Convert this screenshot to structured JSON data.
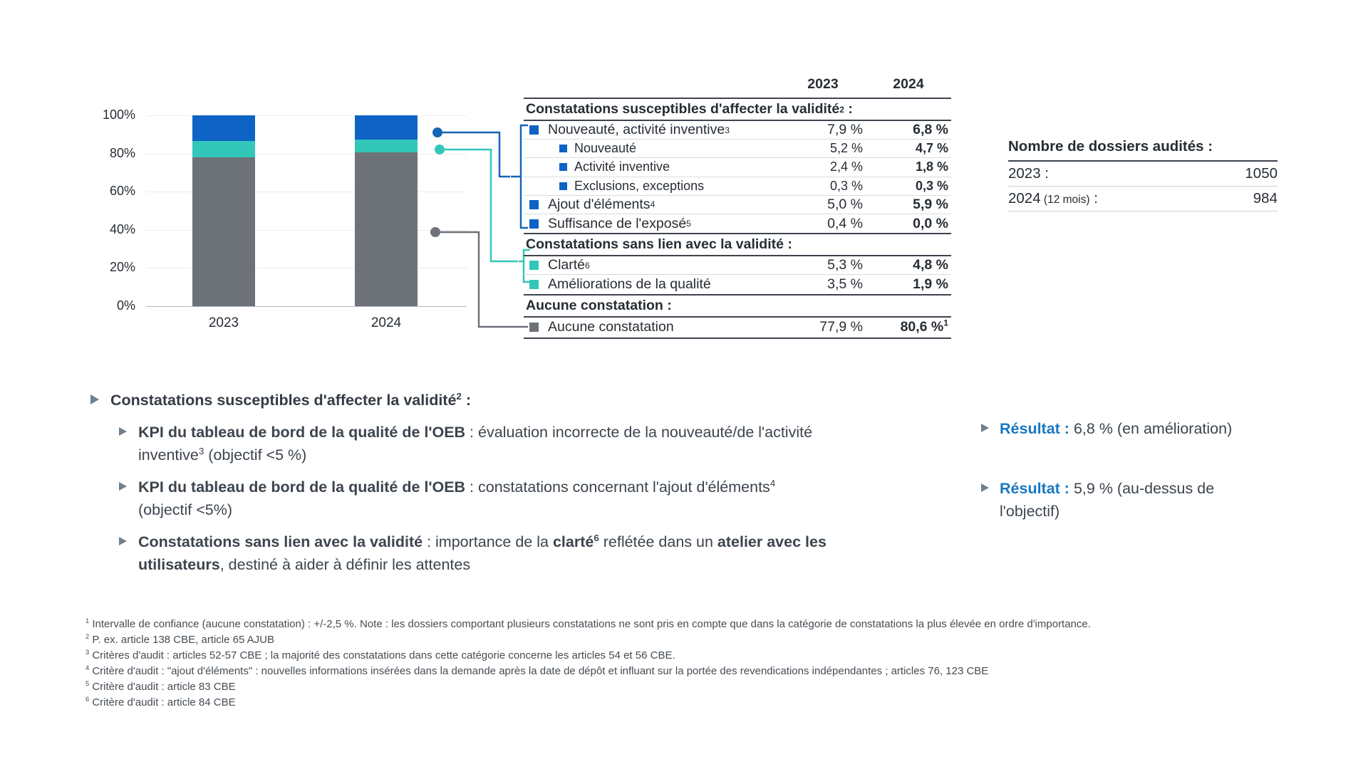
{
  "colors": {
    "blue": "#0e63c4",
    "teal": "#33c7ba",
    "gray": "#6d7278",
    "result_blue": "#1778c2",
    "text": "#3c444d"
  },
  "chart_data": {
    "type": "bar",
    "stacked": true,
    "categories": [
      "2023",
      "2024"
    ],
    "series": [
      {
        "name": "Aucune constatation",
        "color_key": "gray",
        "values": [
          77.9,
          80.6
        ]
      },
      {
        "name": "Constatations sans lien avec la validité",
        "color_key": "teal",
        "values": [
          8.8,
          6.7
        ]
      },
      {
        "name": "Constatations susceptibles d'affecter la validité",
        "color_key": "blue",
        "values": [
          13.3,
          12.7
        ]
      }
    ],
    "title": "",
    "xlabel": "",
    "ylabel": "",
    "yticks": [
      "0%",
      "20%",
      "40%",
      "60%",
      "80%",
      "100%"
    ],
    "ylim": [
      0,
      100
    ],
    "grid": true,
    "legend": "none"
  },
  "table": {
    "col_headers": [
      "2023",
      "2024"
    ],
    "sections": [
      {
        "header": "Constatations susceptibles d'affecter la validité",
        "header_sup": "2",
        "header_tail": " :",
        "rows": [
          {
            "label": "Nouveauté, activité inventive",
            "sup": "3",
            "indent": false,
            "marker": "blue",
            "y2023": "7,9 %",
            "y2024": "6,8 %"
          },
          {
            "label": "Nouveauté",
            "indent": true,
            "marker": "blue",
            "y2023": "5,2 %",
            "y2024": "4,7 %"
          },
          {
            "label": "Activité inventive",
            "indent": true,
            "marker": "blue",
            "y2023": "2,4 %",
            "y2024": "1,8 %"
          },
          {
            "label": "Exclusions, exceptions",
            "indent": true,
            "marker": "blue",
            "y2023": "0,3 %",
            "y2024": "0,3 %"
          },
          {
            "label": "Ajout d'éléments",
            "sup": "4",
            "indent": false,
            "marker": "blue",
            "y2023": "5,0 %",
            "y2024": "5,9 %"
          },
          {
            "label": "Suffisance de l'exposé",
            "sup": "5",
            "indent": false,
            "marker": "blue",
            "y2023": "0,4 %",
            "y2024": "0,0 %"
          }
        ]
      },
      {
        "header": "Constatations sans lien avec la validité",
        "header_tail": " :",
        "rows": [
          {
            "label": "Clarté",
            "sup": "6",
            "indent": false,
            "marker": "teal",
            "y2023": "5,3 %",
            "y2024": "4,8 %"
          },
          {
            "label": "Améliorations de la qualité",
            "indent": false,
            "marker": "teal",
            "y2023": "3,5 %",
            "y2024": "1,9 %"
          }
        ]
      },
      {
        "header": "Aucune constatation",
        "header_tail": " :",
        "rows": [
          {
            "label": "Aucune constatation",
            "indent": false,
            "marker": "gray",
            "y2023": "77,9 %",
            "y2024": "80,6 %",
            "y2024_sup": "1"
          }
        ]
      }
    ]
  },
  "audited": {
    "title": "Nombre de dossiers audités :",
    "rows": [
      {
        "label": "2023",
        "note": "",
        "suffix": " :",
        "value": "1050"
      },
      {
        "label": "2024",
        "note": "(12 mois)",
        "suffix": " :",
        "value": "984"
      }
    ]
  },
  "bullets": {
    "title_segments": [
      {
        "t": "Constatations susceptibles d'affecter la validité",
        "b": true
      },
      {
        "t": "2",
        "b": true,
        "sup": true
      },
      {
        "t": " :",
        "b": true
      }
    ],
    "items": [
      {
        "segments": [
          {
            "t": "KPI du tableau de bord de la qualité de l'OEB",
            "b": true
          },
          {
            "t": " : évaluation incorrecte de la nouveauté/de l'activité inventive"
          },
          {
            "t": "3",
            "sup": true
          },
          {
            "t": " (objectif <5 %)"
          }
        ]
      },
      {
        "segments": [
          {
            "t": "KPI du tableau de bord de la qualité de l'OEB",
            "b": true
          },
          {
            "t": " : constatations concernant l'ajout d'éléments"
          },
          {
            "t": "4",
            "sup": true
          },
          {
            "t": " (objectif <5%)"
          }
        ]
      },
      {
        "segments": [
          {
            "t": "Constatations sans lien avec la validité",
            "b": true
          },
          {
            "t": " : importance de la "
          },
          {
            "t": "clarté",
            "b": true
          },
          {
            "t": "6",
            "b": true,
            "sup": true
          },
          {
            "t": " reflétée dans un "
          },
          {
            "t": "atelier avec les utilisateurs",
            "b": true
          },
          {
            "t": ", destiné à aider à définir les attentes"
          }
        ]
      }
    ]
  },
  "results": [
    {
      "label": "Résultat :",
      "text": "6,8 % (en amélioration)"
    },
    {
      "label": "Résultat :",
      "text": "5,9 % (au-dessus de l'objectif)"
    }
  ],
  "footnotes": [
    {
      "sup": "1",
      "text": "Intervalle de confiance (aucune constatation) : +/-2,5 %. Note : les dossiers comportant plusieurs constatations ne sont pris en compte que dans la catégorie de constatations la plus élevée en ordre d'importance."
    },
    {
      "sup": "2",
      "text": "P. ex. article 138 CBE, article 65 AJUB"
    },
    {
      "sup": "3",
      "text": "Critères d'audit : articles 52-57 CBE ; la majorité des constatations dans cette catégorie concerne les articles 54 et 56 CBE."
    },
    {
      "sup": "4",
      "text": "Critère d'audit : \"ajout d'éléments\" : nouvelles informations insérées dans la demande après la date de dépôt et influant sur la portée des revendications indépendantes ; articles 76, 123 CBE"
    },
    {
      "sup": "5",
      "text": "Critère d'audit : article 83 CBE"
    },
    {
      "sup": "6",
      "text": "Critère d'audit : article 84 CBE"
    }
  ]
}
